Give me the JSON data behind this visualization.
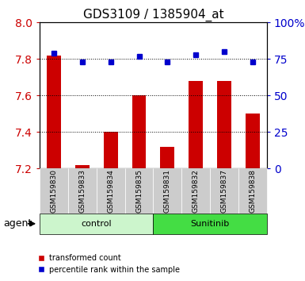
{
  "title": "GDS3109 / 1385904_at",
  "samples": [
    "GSM159830",
    "GSM159833",
    "GSM159834",
    "GSM159835",
    "GSM159831",
    "GSM159832",
    "GSM159837",
    "GSM159838"
  ],
  "red_values": [
    7.82,
    7.22,
    7.4,
    7.6,
    7.32,
    7.68,
    7.68,
    7.5
  ],
  "blue_values": [
    79,
    73,
    73,
    77,
    73,
    78,
    80,
    73
  ],
  "ylim_left": [
    7.2,
    8.0
  ],
  "ylim_right": [
    0,
    100
  ],
  "yticks_left": [
    7.2,
    7.4,
    7.6,
    7.8,
    8.0
  ],
  "yticks_right": [
    0,
    25,
    50,
    75,
    100
  ],
  "bar_color": "#cc0000",
  "dot_color": "#0000cc",
  "bar_bottom": 7.2,
  "bar_width": 0.5,
  "plot_bg": "#ffffff",
  "tick_area_bg": "#cccccc",
  "control_bg": "#ccf5cc",
  "sunitinib_bg": "#44dd44",
  "legend_red_label": "transformed count",
  "legend_blue_label": "percentile rank within the sample",
  "agent_label": "agent",
  "left_tick_color": "#cc0000",
  "right_tick_color": "#0000cc",
  "grid_dotted_at": [
    7.4,
    7.6,
    7.8
  ],
  "control_count": 4,
  "sunitinib_count": 4
}
